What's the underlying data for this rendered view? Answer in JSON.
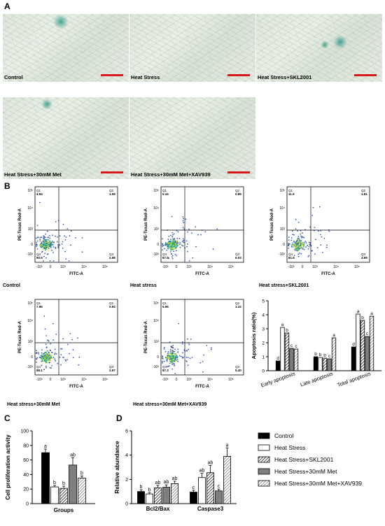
{
  "panels": {
    "a": "A",
    "b": "B",
    "c": "C",
    "d": "D"
  },
  "micrographs": [
    {
      "label": "Control"
    },
    {
      "label": "Heat Stress"
    },
    {
      "label": "Heat Stress+SKL2001"
    },
    {
      "label": "Heat Stress+30mM Met"
    },
    {
      "label": "Heat Stress+30mM Met+XAV939"
    }
  ],
  "flow": {
    "y_axis": "PE-Texas Red-A",
    "x_axis": "FITC-A",
    "y_ticks": [
      "10⁵",
      "10⁴",
      "10³",
      "0",
      "-10³"
    ],
    "x_ticks": [
      "-10³",
      "0",
      "10³",
      "10⁴",
      "10⁵"
    ],
    "plots": [
      {
        "name": "Control",
        "q1": "4.94",
        "q2": "1.59",
        "q3": "2.98",
        "q4": "90.5"
      },
      {
        "name": "Heat stress",
        "q1": "5.15",
        "q2": "0.89",
        "q3": "6.03",
        "q4": "87.9"
      },
      {
        "name": "Heat stress+SKL2001",
        "q1": "11.9",
        "q2": "1.81",
        "q3": "4.69",
        "q4": "81.6"
      },
      {
        "name": "Heat stress+30mM Met",
        "q1": "7.96",
        "q2": "0.94",
        "q3": "2.97",
        "q4": "88.1"
      },
      {
        "name": "Heat stress+30mM Met+XAV939",
        "q1": "5.96",
        "q2": "1.32",
        "q3": "5.40",
        "q4": "87.3"
      }
    ]
  },
  "legend": [
    "Control",
    "Heat Stress",
    "Heat Stress+SKL2001",
    "Heat Stress+30mM Met",
    "Heat Stress+30mM Met+XAV939"
  ],
  "colors": {
    "s1": "#000000",
    "s2": "#ffffff",
    "s3": "hatch",
    "s4": "#7f7f7f",
    "s5": "stripe",
    "scalebar": "#d61b1b"
  },
  "chart_data": [
    {
      "type": "bar",
      "ylabel": "Apoptosis ratio(%)",
      "ylim": [
        0,
        5
      ],
      "yticks": [
        "0",
        "1",
        "2",
        "3",
        "4",
        "5"
      ],
      "categories": [
        "Early apoptosis",
        "Late apoptosis",
        "Total apoptosis"
      ],
      "series": [
        {
          "name": "Control",
          "values": [
            0.7,
            1.0,
            1.7
          ],
          "letters": [
            "d",
            "b",
            "d"
          ]
        },
        {
          "name": "Heat Stress",
          "values": [
            3.1,
            0.95,
            4.05
          ],
          "letters": [
            "a",
            "b",
            "a"
          ]
        },
        {
          "name": "Heat Stress+SKL2001",
          "values": [
            2.7,
            0.9,
            3.6
          ],
          "letters": [
            "b",
            "b",
            "b"
          ]
        },
        {
          "name": "Heat Stress+30mM Met",
          "values": [
            1.6,
            0.85,
            2.45
          ],
          "letters": [
            "c",
            "c",
            "c"
          ]
        },
        {
          "name": "Heat Stress+30mM Met+XAV939",
          "values": [
            1.55,
            2.35,
            3.9
          ],
          "letters": [
            "c",
            "a",
            "a"
          ]
        }
      ]
    },
    {
      "type": "bar",
      "ylabel": "Cell proliferation activity",
      "xlabel": "Groups",
      "ylim": [
        0,
        100
      ],
      "yticks": [
        "0",
        "20",
        "40",
        "60",
        "80",
        "100"
      ],
      "categories": [
        "Groups"
      ],
      "series": [
        {
          "name": "Control",
          "values": [
            70
          ],
          "err": [
            5
          ],
          "letters": [
            "a"
          ]
        },
        {
          "name": "Heat Stress",
          "values": [
            23
          ],
          "err": [
            2
          ],
          "letters": [
            "b"
          ]
        },
        {
          "name": "Heat Stress+SKL2001",
          "values": [
            21
          ],
          "err": [
            3
          ],
          "letters": [
            "b"
          ]
        },
        {
          "name": "Heat Stress+30mM Met",
          "values": [
            53
          ],
          "err": [
            10
          ],
          "letters": [
            "ab"
          ]
        },
        {
          "name": "Heat Stress+30mM Met+XAV939",
          "values": [
            35
          ],
          "err": [
            3
          ],
          "letters": [
            "b"
          ]
        }
      ]
    },
    {
      "type": "bar",
      "ylabel": "Relative abundance",
      "ylim": [
        0,
        6
      ],
      "yticks": [
        "0",
        "2",
        "4",
        "6"
      ],
      "categories": [
        "Bcl2/Bax",
        "Caspase3"
      ],
      "series": [
        {
          "name": "Control",
          "values": [
            1.0,
            0.95
          ],
          "err": [
            0.15,
            0.15
          ],
          "letters": [
            "b",
            "c"
          ]
        },
        {
          "name": "Heat Stress",
          "values": [
            0.8,
            2.15
          ],
          "err": [
            0.1,
            0.35
          ],
          "letters": [
            "b",
            "ab"
          ]
        },
        {
          "name": "Heat Stress+SKL2001",
          "values": [
            1.3,
            2.55
          ],
          "err": [
            0.2,
            0.6
          ],
          "letters": [
            "ab",
            "ab"
          ]
        },
        {
          "name": "Heat Stress+30mM Met",
          "values": [
            1.35,
            1.05
          ],
          "err": [
            0.2,
            0.15
          ],
          "letters": [
            "ab",
            "c"
          ]
        },
        {
          "name": "Heat Stress+30mM Met+XAV939",
          "values": [
            1.65,
            3.9
          ],
          "err": [
            0.2,
            0.7
          ],
          "letters": [
            "ab",
            "a"
          ]
        }
      ]
    }
  ]
}
